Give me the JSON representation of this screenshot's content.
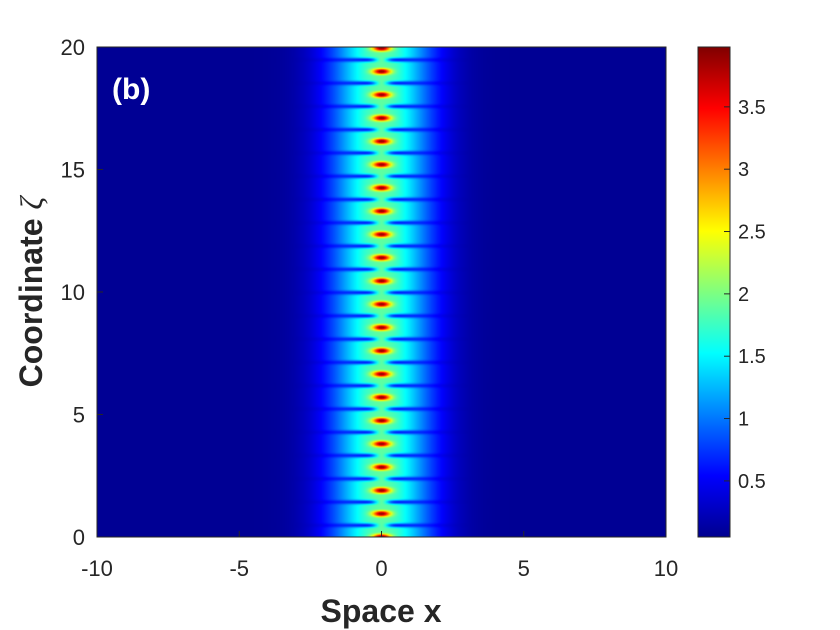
{
  "chart_data": {
    "type": "heatmap",
    "panel_label": "(b)",
    "xlabel": "Space x",
    "ylabel_text": "Coordinate ",
    "ylabel_symbol": "ζ",
    "xlim": [
      -10,
      10
    ],
    "ylim": [
      0,
      20
    ],
    "x_ticks": [
      {
        "value": -10,
        "label": "-10"
      },
      {
        "value": -5,
        "label": "-5"
      },
      {
        "value": 0,
        "label": "0"
      },
      {
        "value": 5,
        "label": "5"
      },
      {
        "value": 10,
        "label": "10"
      }
    ],
    "y_ticks": [
      {
        "value": 0,
        "label": "0"
      },
      {
        "value": 5,
        "label": "5"
      },
      {
        "value": 10,
        "label": "10"
      },
      {
        "value": 15,
        "label": "15"
      },
      {
        "value": 20,
        "label": "20"
      }
    ],
    "colorbar": {
      "colormap": "jet",
      "range": [
        0.05,
        3.98
      ],
      "ticks": [
        {
          "value": 0.5,
          "label": "0.5"
        },
        {
          "value": 1,
          "label": "1"
        },
        {
          "value": 1.5,
          "label": "1.5"
        },
        {
          "value": 2,
          "label": "2"
        },
        {
          "value": 2.5,
          "label": "2.5"
        },
        {
          "value": 3,
          "label": "3"
        },
        {
          "value": 3.5,
          "label": "3.5"
        }
      ]
    },
    "field": {
      "description_of_pattern": "periodic breather localized at x = 0",
      "center_x": 0,
      "period_zeta": 0.95,
      "peak_value": 3.98,
      "background_value": 0.05
    }
  }
}
